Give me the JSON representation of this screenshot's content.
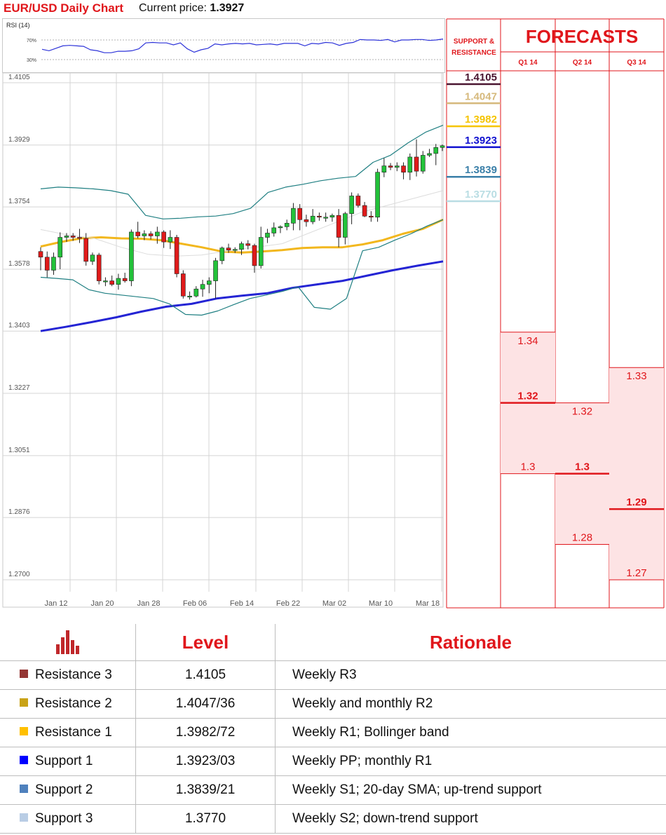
{
  "header": {
    "title": "EUR/USD Daily Chart",
    "price_label": "Current price:",
    "price_value": "1.3927"
  },
  "chart_data": [
    {
      "type": "line",
      "title": "RSI (14)",
      "ylim": [
        0,
        100
      ],
      "y_ticks": [
        "70%",
        "30%"
      ],
      "series": [
        {
          "values": [
            51,
            48,
            53,
            58,
            59,
            58,
            57,
            50,
            48,
            44,
            44,
            47,
            47,
            48,
            52,
            64,
            65,
            64,
            64,
            60,
            64,
            52,
            45,
            50,
            53,
            62,
            60,
            62,
            63,
            62,
            63,
            60,
            61,
            62,
            60,
            63,
            63,
            63,
            58,
            63,
            62,
            65,
            64,
            59,
            63,
            65,
            71,
            70,
            70,
            69,
            71,
            66,
            70,
            70,
            71,
            71,
            69,
            70,
            72
          ]
        }
      ],
      "color": "#2d33d9"
    },
    {
      "type": "candlestick",
      "x_tick_labels": [
        "Jan 12",
        "Jan 20",
        "Jan 28",
        "Feb 06",
        "Feb 14",
        "Feb 22",
        "Mar 02",
        "Mar 10",
        "Mar 18"
      ],
      "y_tick_labels": [
        "1.4105",
        "1.3929",
        "1.3754",
        "1.3578",
        "1.3403",
        "1.3227",
        "1.3051",
        "1.2876",
        "1.2700"
      ],
      "ylim": [
        1.27,
        1.4105
      ],
      "grid": true,
      "candles": [
        {
          "o": 1.3628,
          "h": 1.364,
          "l": 1.3575,
          "c": 1.3612
        },
        {
          "o": 1.3612,
          "h": 1.3628,
          "l": 1.3555,
          "c": 1.3575
        },
        {
          "o": 1.3575,
          "h": 1.3625,
          "l": 1.3562,
          "c": 1.3612
        },
        {
          "o": 1.3612,
          "h": 1.3682,
          "l": 1.3578,
          "c": 1.3668
        },
        {
          "o": 1.3668,
          "h": 1.368,
          "l": 1.3655,
          "c": 1.3672
        },
        {
          "o": 1.3672,
          "h": 1.368,
          "l": 1.3658,
          "c": 1.3668
        },
        {
          "o": 1.3668,
          "h": 1.3692,
          "l": 1.3652,
          "c": 1.3665
        },
        {
          "o": 1.3665,
          "h": 1.368,
          "l": 1.3588,
          "c": 1.36
        },
        {
          "o": 1.36,
          "h": 1.3625,
          "l": 1.359,
          "c": 1.3618
        },
        {
          "o": 1.3618,
          "h": 1.3624,
          "l": 1.3535,
          "c": 1.3545
        },
        {
          "o": 1.3545,
          "h": 1.3555,
          "l": 1.353,
          "c": 1.3545
        },
        {
          "o": 1.3545,
          "h": 1.356,
          "l": 1.353,
          "c": 1.3535
        },
        {
          "o": 1.3535,
          "h": 1.3565,
          "l": 1.352,
          "c": 1.3552
        },
        {
          "o": 1.3552,
          "h": 1.3568,
          "l": 1.354,
          "c": 1.3545
        },
        {
          "o": 1.3545,
          "h": 1.369,
          "l": 1.353,
          "c": 1.3683
        },
        {
          "o": 1.3683,
          "h": 1.3712,
          "l": 1.3665,
          "c": 1.3672
        },
        {
          "o": 1.3672,
          "h": 1.3688,
          "l": 1.366,
          "c": 1.3678
        },
        {
          "o": 1.3678,
          "h": 1.3685,
          "l": 1.3662,
          "c": 1.3672
        },
        {
          "o": 1.3672,
          "h": 1.3698,
          "l": 1.365,
          "c": 1.3683
        },
        {
          "o": 1.3683,
          "h": 1.3688,
          "l": 1.3638,
          "c": 1.3655
        },
        {
          "o": 1.3655,
          "h": 1.3688,
          "l": 1.3635,
          "c": 1.3668
        },
        {
          "o": 1.3668,
          "h": 1.3675,
          "l": 1.3555,
          "c": 1.3565
        },
        {
          "o": 1.3565,
          "h": 1.3575,
          "l": 1.3495,
          "c": 1.3502
        },
        {
          "o": 1.3502,
          "h": 1.3515,
          "l": 1.3492,
          "c": 1.3502
        },
        {
          "o": 1.3502,
          "h": 1.353,
          "l": 1.3498,
          "c": 1.3522
        },
        {
          "o": 1.3522,
          "h": 1.3548,
          "l": 1.35,
          "c": 1.3535
        },
        {
          "o": 1.3535,
          "h": 1.3555,
          "l": 1.351,
          "c": 1.3545
        },
        {
          "o": 1.3545,
          "h": 1.361,
          "l": 1.3495,
          "c": 1.3602
        },
        {
          "o": 1.3602,
          "h": 1.3642,
          "l": 1.3592,
          "c": 1.3638
        },
        {
          "o": 1.3638,
          "h": 1.365,
          "l": 1.3624,
          "c": 1.3632
        },
        {
          "o": 1.3632,
          "h": 1.364,
          "l": 1.3624,
          "c": 1.3634
        },
        {
          "o": 1.3634,
          "h": 1.3656,
          "l": 1.3618,
          "c": 1.365
        },
        {
          "o": 1.365,
          "h": 1.366,
          "l": 1.3634,
          "c": 1.3645
        },
        {
          "o": 1.3645,
          "h": 1.365,
          "l": 1.3568,
          "c": 1.3588
        },
        {
          "o": 1.3588,
          "h": 1.3698,
          "l": 1.358,
          "c": 1.3668
        },
        {
          "o": 1.3668,
          "h": 1.3692,
          "l": 1.3652,
          "c": 1.368
        },
        {
          "o": 1.368,
          "h": 1.371,
          "l": 1.367,
          "c": 1.3695
        },
        {
          "o": 1.3695,
          "h": 1.3702,
          "l": 1.368,
          "c": 1.3698
        },
        {
          "o": 1.3698,
          "h": 1.3718,
          "l": 1.3688,
          "c": 1.3708
        },
        {
          "o": 1.3708,
          "h": 1.3765,
          "l": 1.3688,
          "c": 1.375
        },
        {
          "o": 1.375,
          "h": 1.3762,
          "l": 1.3688,
          "c": 1.3718
        },
        {
          "o": 1.3718,
          "h": 1.3732,
          "l": 1.3698,
          "c": 1.3712
        },
        {
          "o": 1.3712,
          "h": 1.3748,
          "l": 1.3705,
          "c": 1.3728
        },
        {
          "o": 1.3728,
          "h": 1.3738,
          "l": 1.3715,
          "c": 1.3725
        },
        {
          "o": 1.3725,
          "h": 1.3738,
          "l": 1.3712,
          "c": 1.3725
        },
        {
          "o": 1.3725,
          "h": 1.3735,
          "l": 1.3712,
          "c": 1.373
        },
        {
          "o": 1.373,
          "h": 1.3748,
          "l": 1.364,
          "c": 1.3668
        },
        {
          "o": 1.3668,
          "h": 1.374,
          "l": 1.3648,
          "c": 1.3735
        },
        {
          "o": 1.3735,
          "h": 1.3795,
          "l": 1.3705,
          "c": 1.3785
        },
        {
          "o": 1.3785,
          "h": 1.3792,
          "l": 1.3752,
          "c": 1.3758
        },
        {
          "o": 1.3758,
          "h": 1.3768,
          "l": 1.3725,
          "c": 1.3728
        },
        {
          "o": 1.3728,
          "h": 1.3742,
          "l": 1.3712,
          "c": 1.3725
        },
        {
          "o": 1.3725,
          "h": 1.3862,
          "l": 1.3712,
          "c": 1.3852
        },
        {
          "o": 1.3852,
          "h": 1.3892,
          "l": 1.3838,
          "c": 1.387
        },
        {
          "o": 1.387,
          "h": 1.3878,
          "l": 1.3858,
          "c": 1.3866
        },
        {
          "o": 1.3866,
          "h": 1.388,
          "l": 1.3855,
          "c": 1.387
        },
        {
          "o": 1.387,
          "h": 1.388,
          "l": 1.3832,
          "c": 1.3852
        },
        {
          "o": 1.3852,
          "h": 1.3905,
          "l": 1.383,
          "c": 1.3895
        },
        {
          "o": 1.3895,
          "h": 1.3945,
          "l": 1.384,
          "c": 1.3855
        },
        {
          "o": 1.3855,
          "h": 1.3912,
          "l": 1.3848,
          "c": 1.39
        },
        {
          "o": 1.39,
          "h": 1.3918,
          "l": 1.3895,
          "c": 1.3905
        },
        {
          "o": 1.3905,
          "h": 1.3932,
          "l": 1.3872,
          "c": 1.3922
        },
        {
          "o": 1.3922,
          "h": 1.393,
          "l": 1.3912,
          "c": 1.3927
        }
      ],
      "overlays": [
        {
          "kind": "moving-average",
          "color": "#2424d4",
          "values": [
            1.3403,
            1.3415,
            1.3428,
            1.3442,
            1.3458,
            1.3472,
            1.348,
            1.3495,
            1.3503,
            1.351,
            1.3525,
            1.3535,
            1.3545,
            1.356,
            1.3575,
            1.3588,
            1.36
          ]
        },
        {
          "kind": "moving-average",
          "color": "#f2b71d",
          "values": [
            1.3642,
            1.3655,
            1.3665,
            1.3668,
            1.3665,
            1.3664,
            1.366,
            1.365,
            1.364,
            1.3628,
            1.3625,
            1.3628,
            1.3632,
            1.3638,
            1.364,
            1.364,
            1.3648,
            1.366,
            1.3678,
            1.3692,
            1.3718
          ]
        },
        {
          "kind": "bollinger-upper",
          "color": "#1f7f82",
          "values": [
            1.3805,
            1.381,
            1.3808,
            1.3805,
            1.38,
            1.379,
            1.373,
            1.372,
            1.3722,
            1.3726,
            1.3728,
            1.3735,
            1.375,
            1.3795,
            1.381,
            1.3818,
            1.3828,
            1.3835,
            1.384,
            1.388,
            1.39,
            1.3935,
            1.3965,
            1.3985
          ]
        },
        {
          "kind": "bollinger-lower",
          "color": "#1f7f82",
          "values": [
            1.3555,
            1.3552,
            1.3548,
            1.352,
            1.351,
            1.3505,
            1.35,
            1.3495,
            1.348,
            1.345,
            1.3448,
            1.346,
            1.3478,
            1.3495,
            1.3505,
            1.3515,
            1.3528,
            1.347,
            1.3465,
            1.3495,
            1.363,
            1.364,
            1.366,
            1.3678,
            1.37,
            1.3718
          ]
        },
        {
          "kind": "bollinger-middle",
          "color": "#dcdcdc",
          "values": [
            1.369,
            1.3675,
            1.3665,
            1.364,
            1.362,
            1.3615,
            1.3618,
            1.363,
            1.364,
            1.365,
            1.368,
            1.371,
            1.374,
            1.376,
            1.378,
            1.38
          ]
        }
      ],
      "support_resistance": [
        {
          "level": "1.4105",
          "color": "#4a1530"
        },
        {
          "level": "1.4047",
          "color": "#d6b97c"
        },
        {
          "level": "1.3982",
          "color": "#f5c400"
        },
        {
          "level": "1.3923",
          "color": "#1010d0"
        },
        {
          "level": "1.3839",
          "color": "#3a7fa8"
        },
        {
          "level": "1.3770",
          "color": "#b9dde3"
        }
      ]
    }
  ],
  "side_panel": {
    "sr_header": [
      "SUPPORT &",
      "RESISTANCE"
    ],
    "forecast_title": "FORECASTS",
    "columns": [
      {
        "label": "Q1 14",
        "high": "1.34",
        "mid": "1.32",
        "low": "1.3",
        "high_v": 1.34,
        "mid_v": 1.32,
        "low_v": 1.3
      },
      {
        "label": "Q2 14",
        "high": "1.32",
        "mid": "1.3",
        "low": "1.28",
        "high_v": 1.32,
        "mid_v": 1.3,
        "low_v": 1.28
      },
      {
        "label": "Q3 14",
        "high": "1.33",
        "mid": "1.29",
        "low": "1.27",
        "high_v": 1.33,
        "mid_v": 1.29,
        "low_v": 1.27
      }
    ]
  },
  "table": {
    "headers": {
      "level": "Level",
      "rationale": "Rationale"
    },
    "rows": [
      {
        "name": "Resistance 3",
        "level": "1.4105",
        "rationale": "Weekly R3",
        "color": "#953735"
      },
      {
        "name": "Resistance 2",
        "level": "1.4047/36",
        "rationale": "Weekly and monthly R2",
        "color": "#c9a317"
      },
      {
        "name": "Resistance 1",
        "level": "1.3982/72",
        "rationale": "Weekly R1; Bollinger band",
        "color": "#ffc000"
      },
      {
        "name": "Support 1",
        "level": "1.3923/03",
        "rationale": "Weekly PP; monthly R1",
        "color": "#0000ff"
      },
      {
        "name": "Support 2",
        "level": "1.3839/21",
        "rationale": "Weekly S1; 20-day SMA; up-trend support",
        "color": "#4f81bd"
      },
      {
        "name": "Support 3",
        "level": "1.3770",
        "rationale": "Weekly S2; down-trend support",
        "color": "#b9cde5"
      }
    ]
  }
}
